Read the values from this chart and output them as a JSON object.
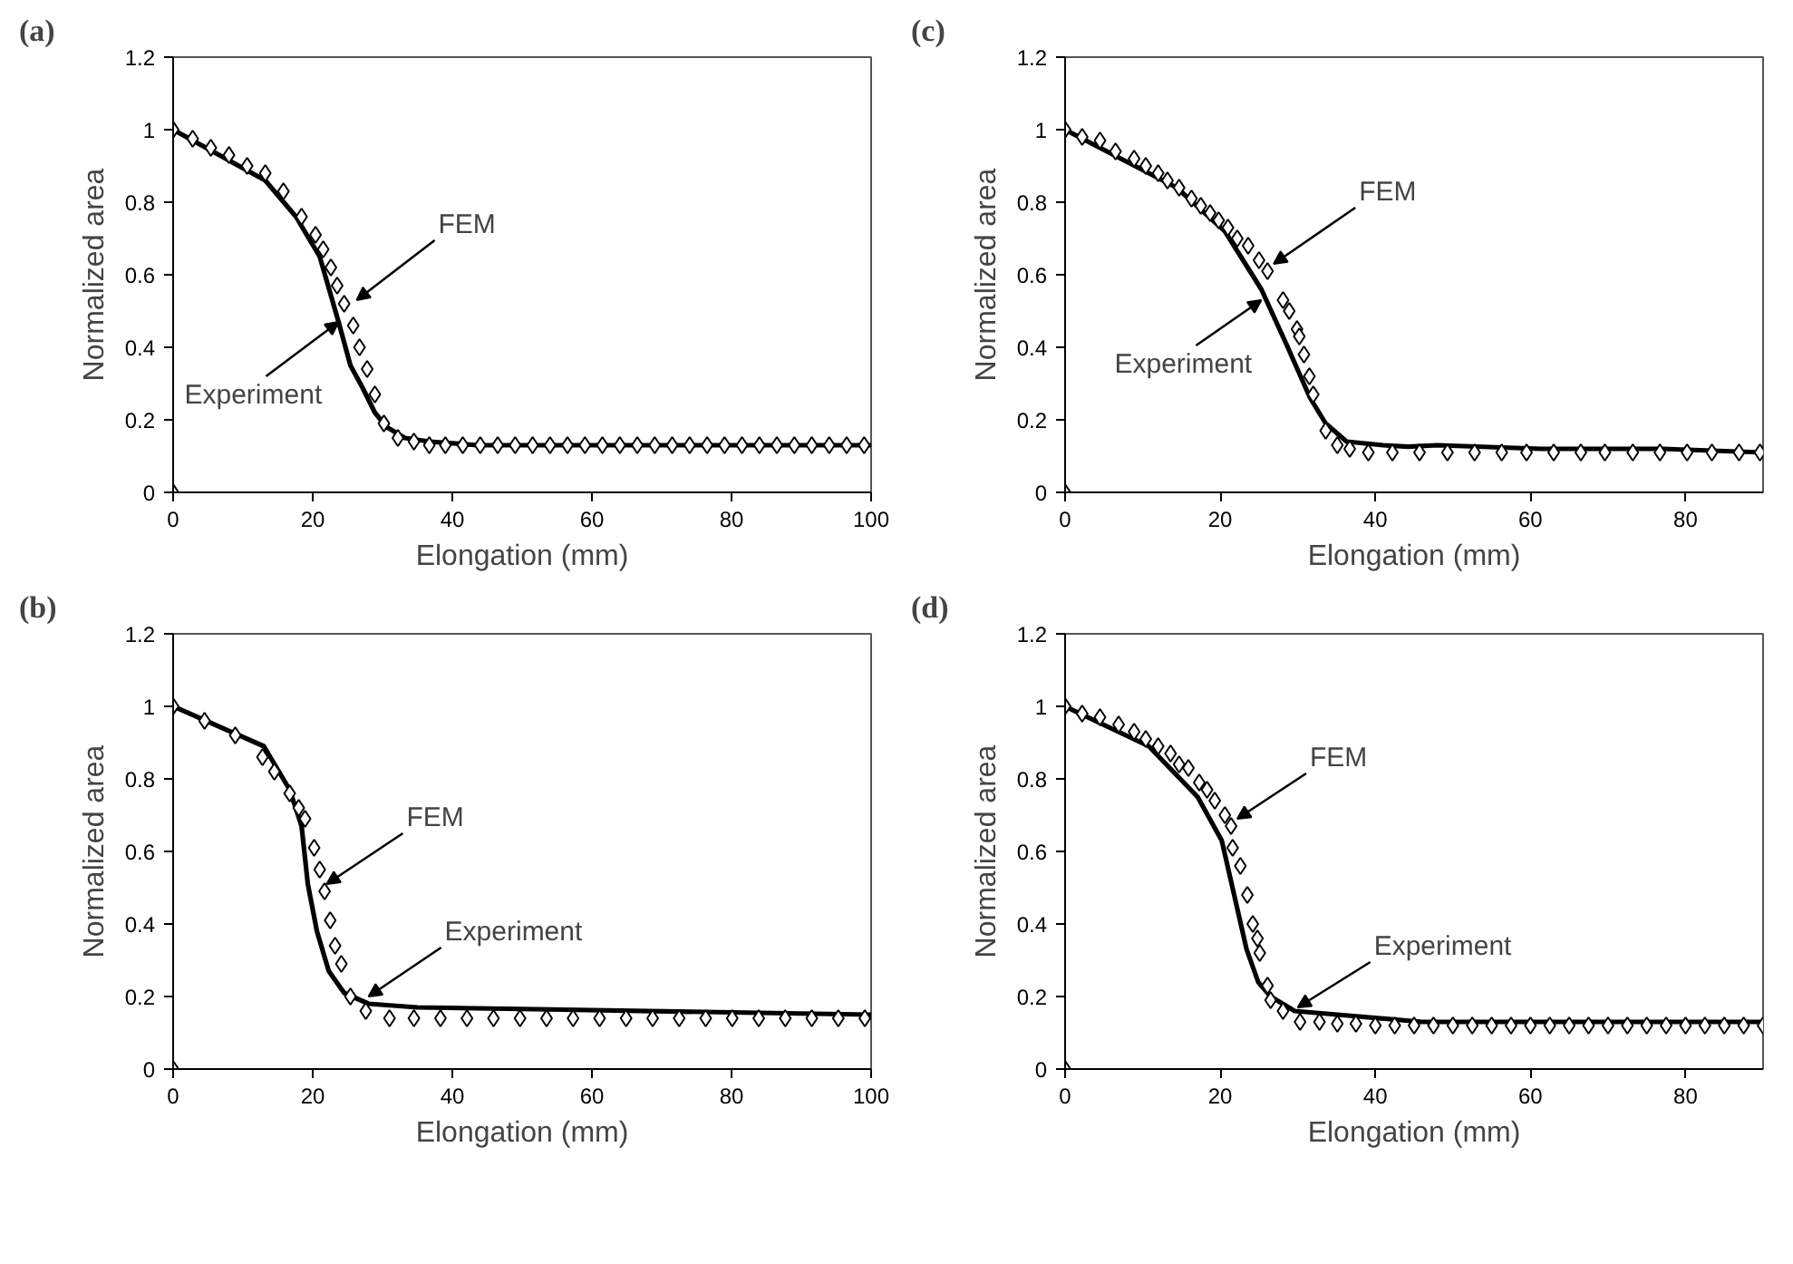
{
  "chart_data": [
    {
      "type": "line",
      "title": "(a)",
      "xlabel": "Elongation (mm)",
      "ylabel": "Normalized area",
      "xlim": [
        0,
        100
      ],
      "ylim": [
        0,
        1.2
      ],
      "xticks": [
        0,
        20,
        40,
        60,
        80,
        100
      ],
      "yticks": [
        0,
        0.2,
        0.4,
        0.6,
        0.8,
        1,
        1.2
      ],
      "grid": false,
      "series": [
        {
          "color": "#000000",
          "line_style": "solid",
          "x": [
            0,
            13.2,
            17.6,
            21,
            23.7,
            25.4,
            27.1,
            28.9,
            30.6,
            33.2,
            36.7,
            43.7,
            100
          ],
          "values": [
            1,
            0.86,
            0.76,
            0.65,
            0.47,
            0.35,
            0.29,
            0.22,
            0.18,
            0.15,
            0.14,
            0.13,
            0.13
          ]
        },
        {
          "type": "scatter",
          "marker": "diamond",
          "color": "#000000",
          "x": [
            0,
            0,
            2.8,
            5.4,
            8,
            10.6,
            13.2,
            15.8,
            18.4,
            20.4,
            21.5,
            22.6,
            23.5,
            24.5,
            25.8,
            26.7,
            27.8,
            28.9,
            30.2,
            32.2,
            34.5,
            36.7,
            39,
            41.5,
            44,
            46.5,
            49,
            51.5,
            54,
            56.5,
            59,
            61.5,
            64,
            66.5,
            69,
            71.5,
            74,
            76.5,
            79,
            81.5,
            84,
            86.5,
            89,
            91.5,
            94,
            96.5,
            99
          ],
          "values": [
            0,
            1,
            0.975,
            0.95,
            0.93,
            0.9,
            0.88,
            0.83,
            0.76,
            0.71,
            0.67,
            0.62,
            0.57,
            0.52,
            0.46,
            0.4,
            0.34,
            0.27,
            0.19,
            0.15,
            0.14,
            0.13,
            0.13,
            0.13,
            0.13,
            0.13,
            0.13,
            0.13,
            0.13,
            0.13,
            0.13,
            0.13,
            0.13,
            0.13,
            0.13,
            0.13,
            0.13,
            0.13,
            0.13,
            0.13,
            0.13,
            0.13,
            0.13,
            0.13,
            0.13,
            0.13,
            0.13
          ]
        }
      ],
      "annotations": [
        {
          "text": "FEM",
          "x": 26.3,
          "y": 0.53
        },
        {
          "text": "Experiment",
          "x": 23.7,
          "y": 0.47
        }
      ]
    },
    {
      "type": "line",
      "title": "(c)",
      "xlabel": "Elongation (mm)",
      "ylabel": "Normalized area",
      "xlim": [
        0,
        90
      ],
      "ylim": [
        0,
        1.2
      ],
      "xticks": [
        0,
        20,
        40,
        60,
        80
      ],
      "yticks": [
        0,
        0.2,
        0.4,
        0.6,
        0.8,
        1,
        1.2
      ],
      "grid": false,
      "series": [
        {
          "color": "#000000",
          "line_style": "solid",
          "x": [
            0,
            14.4,
            20.6,
            25.3,
            28.5,
            31.6,
            33.6,
            36.3,
            41,
            44.2,
            48,
            61.4,
            77,
            90
          ],
          "values": [
            1,
            0.84,
            0.72,
            0.56,
            0.41,
            0.26,
            0.19,
            0.14,
            0.13,
            0.126,
            0.13,
            0.12,
            0.12,
            0.11
          ]
        },
        {
          "type": "scatter",
          "marker": "diamond",
          "color": "#000000",
          "x": [
            0,
            0,
            2.2,
            4.5,
            6.5,
            8.9,
            10.4,
            12,
            13.2,
            14.7,
            16.3,
            17.5,
            18.7,
            19.8,
            21,
            22.2,
            23.6,
            25,
            26.1,
            28.1,
            28.9,
            29.9,
            30.2,
            30.8,
            31.5,
            32,
            33.6,
            35.1,
            36.7,
            39.1,
            42.2,
            45.7,
            49.3,
            52.8,
            56.3,
            59.5,
            63,
            66.5,
            69.6,
            73.2,
            76.7,
            80.2,
            83.4,
            86.9,
            89.6
          ],
          "values": [
            0,
            1,
            0.98,
            0.97,
            0.94,
            0.92,
            0.9,
            0.88,
            0.86,
            0.84,
            0.81,
            0.79,
            0.77,
            0.75,
            0.73,
            0.7,
            0.68,
            0.64,
            0.61,
            0.53,
            0.5,
            0.45,
            0.43,
            0.38,
            0.32,
            0.27,
            0.17,
            0.13,
            0.12,
            0.11,
            0.11,
            0.11,
            0.11,
            0.11,
            0.11,
            0.11,
            0.11,
            0.11,
            0.11,
            0.11,
            0.11,
            0.11,
            0.11,
            0.11,
            0.11
          ]
        }
      ],
      "annotations": [
        {
          "text": "FEM",
          "x": 26.9,
          "y": 0.63
        },
        {
          "text": "Experiment",
          "x": 25.3,
          "y": 0.53
        }
      ]
    },
    {
      "type": "line",
      "title": "(b)",
      "xlabel": "Elongation (mm)",
      "ylabel": "Normalized area",
      "xlim": [
        0,
        100
      ],
      "ylim": [
        0,
        1.2
      ],
      "xticks": [
        0,
        20,
        40,
        60,
        80,
        100
      ],
      "yticks": [
        0,
        0.2,
        0.4,
        0.6,
        0.8,
        1,
        1.2
      ],
      "grid": false,
      "series": [
        {
          "color": "#000000",
          "line_style": "solid",
          "x": [
            0,
            13,
            16.7,
            18.4,
            19.3,
            20.6,
            22.3,
            24.5,
            28,
            35,
            52,
            100
          ],
          "values": [
            1,
            0.89,
            0.77,
            0.67,
            0.51,
            0.38,
            0.27,
            0.21,
            0.18,
            0.17,
            0.165,
            0.15
          ]
        },
        {
          "type": "scatter",
          "marker": "diamond",
          "color": "#000000",
          "x": [
            0,
            0,
            4.5,
            8.9,
            12.8,
            14.5,
            16.7,
            18,
            18.9,
            20.2,
            21,
            21.7,
            22.5,
            23.2,
            24.1,
            25.4,
            27.6,
            31,
            34.5,
            38.3,
            42.1,
            45.9,
            49.7,
            53.5,
            57.3,
            61.1,
            64.9,
            68.7,
            72.5,
            76.3,
            80.1,
            83.9,
            87.7,
            91.5,
            95.3,
            99.1
          ],
          "values": [
            0,
            1,
            0.96,
            0.92,
            0.86,
            0.82,
            0.76,
            0.72,
            0.69,
            0.61,
            0.55,
            0.49,
            0.41,
            0.34,
            0.29,
            0.2,
            0.16,
            0.14,
            0.14,
            0.14,
            0.14,
            0.14,
            0.14,
            0.14,
            0.14,
            0.14,
            0.14,
            0.14,
            0.14,
            0.14,
            0.14,
            0.14,
            0.14,
            0.14,
            0.14,
            0.14
          ]
        }
      ],
      "annotations": [
        {
          "text": "FEM",
          "x": 22,
          "y": 0.51
        },
        {
          "text": "Experiment",
          "x": 28,
          "y": 0.2
        }
      ]
    },
    {
      "type": "line",
      "title": "(d)",
      "xlabel": "Elongation (mm)",
      "ylabel": "Normalized area",
      "xlim": [
        0,
        90
      ],
      "ylim": [
        0,
        1.2
      ],
      "xticks": [
        0,
        20,
        40,
        60,
        80
      ],
      "yticks": [
        0,
        0.2,
        0.4,
        0.6,
        0.8,
        1,
        1.2
      ],
      "grid": false,
      "series": [
        {
          "color": "#000000",
          "line_style": "solid",
          "x": [
            0,
            10.8,
            17.1,
            20.2,
            21.8,
            23.4,
            24.9,
            26.5,
            29.6,
            35.1,
            46,
            61.8,
            90
          ],
          "values": [
            1,
            0.89,
            0.75,
            0.63,
            0.48,
            0.33,
            0.24,
            0.2,
            0.16,
            0.15,
            0.13,
            0.13,
            0.13
          ]
        },
        {
          "type": "scatter",
          "marker": "diamond",
          "color": "#000000",
          "x": [
            0,
            0,
            2.2,
            4.5,
            6.9,
            8.9,
            10.4,
            12,
            13.6,
            14.7,
            15.9,
            17.3,
            18.3,
            19.3,
            20.6,
            21.4,
            21.6,
            22.6,
            23.5,
            24.2,
            24.8,
            25.1,
            26.1,
            26.5,
            28.1,
            30.3,
            32.8,
            35.1,
            37.5,
            40,
            42.5,
            45,
            47.5,
            50,
            52.5,
            55,
            57.5,
            60,
            62.5,
            65,
            67.5,
            70,
            72.5,
            75,
            77.5,
            80,
            82.5,
            85,
            87.5,
            90
          ],
          "values": [
            0,
            1,
            0.98,
            0.97,
            0.95,
            0.93,
            0.91,
            0.89,
            0.87,
            0.84,
            0.83,
            0.79,
            0.77,
            0.74,
            0.7,
            0.67,
            0.61,
            0.56,
            0.48,
            0.4,
            0.36,
            0.32,
            0.23,
            0.19,
            0.16,
            0.13,
            0.13,
            0.125,
            0.125,
            0.12,
            0.12,
            0.12,
            0.12,
            0.12,
            0.12,
            0.12,
            0.12,
            0.12,
            0.12,
            0.12,
            0.12,
            0.12,
            0.12,
            0.12,
            0.12,
            0.12,
            0.12,
            0.12,
            0.12,
            0.12
          ]
        }
      ],
      "annotations": [
        {
          "text": "FEM",
          "x": 22.2,
          "y": 0.69
        },
        {
          "text": "Experiment",
          "x": 30,
          "y": 0.17
        }
      ]
    }
  ]
}
